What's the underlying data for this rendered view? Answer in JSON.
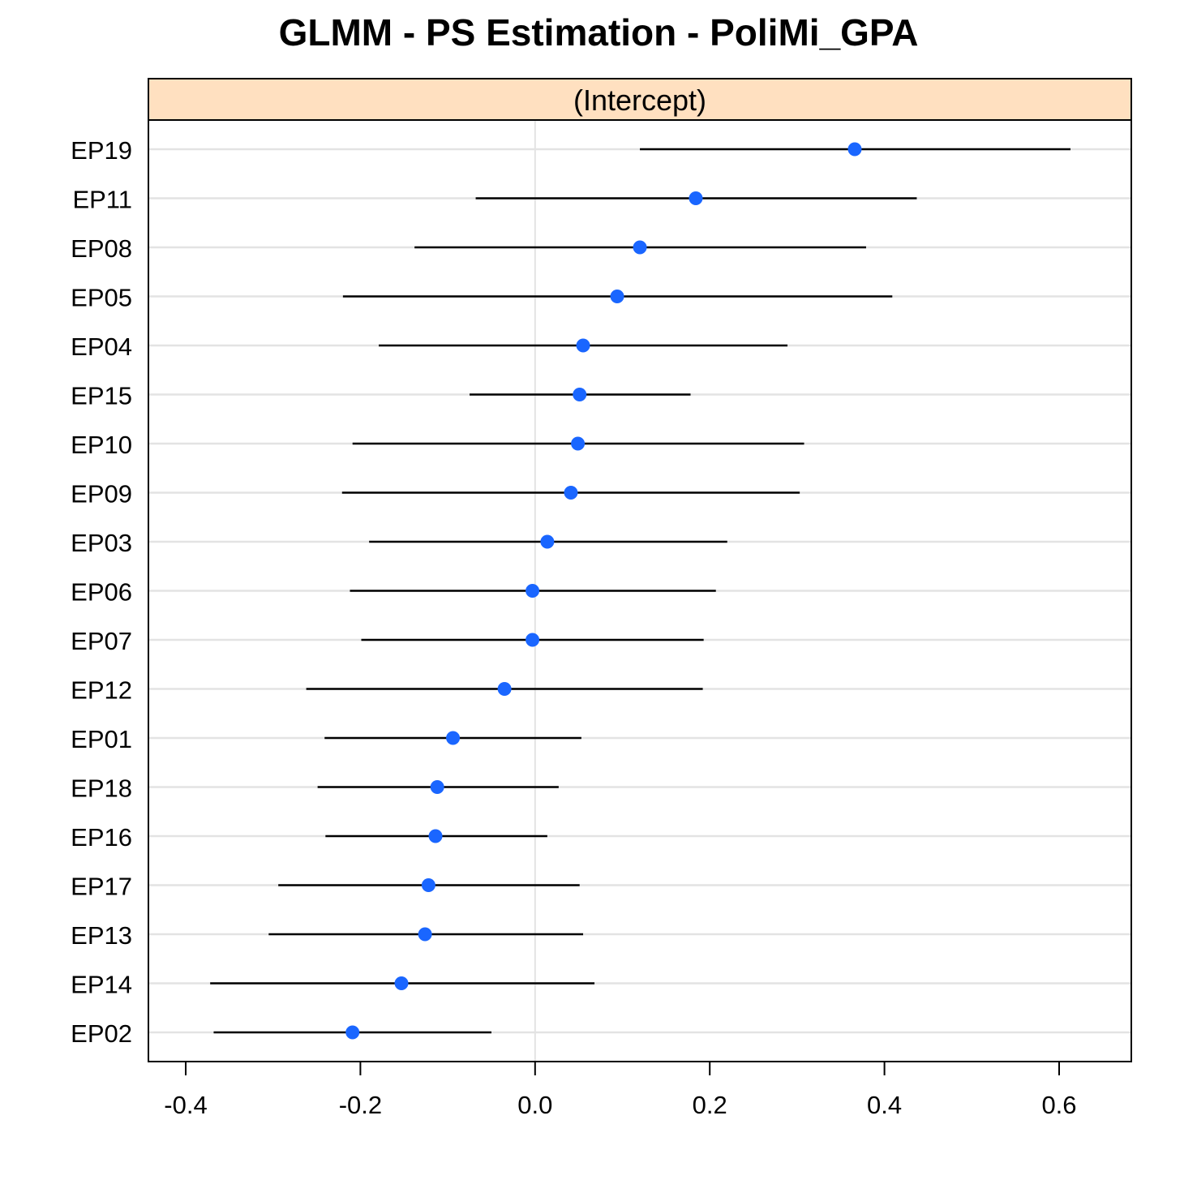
{
  "chart_data": {
    "type": "dot-interval",
    "title": "GLMM - PS Estimation - PoliMi_GPA",
    "panel_label": "(Intercept)",
    "xlabel": "",
    "ylabel": "",
    "xlim": [
      -0.42,
      0.68
    ],
    "x_ticks": [
      -0.4,
      -0.2,
      0.0,
      0.2,
      0.4,
      0.6
    ],
    "x_tick_labels": [
      "-0.4",
      "-0.2",
      "0.0",
      "0.2",
      "0.4",
      "0.6"
    ],
    "reference_line": 0.0,
    "grid": "horizontal",
    "colors": {
      "point": "#1a66ff",
      "interval": "#000000",
      "grid": "#e3e3e3",
      "strip": "#ffe0c0",
      "frame": "#000000"
    },
    "categories": [
      "EP19",
      "EP11",
      "EP08",
      "EP05",
      "EP04",
      "EP15",
      "EP10",
      "EP09",
      "EP03",
      "EP06",
      "EP07",
      "EP12",
      "EP01",
      "EP18",
      "EP16",
      "EP17",
      "EP13",
      "EP14",
      "EP02"
    ],
    "estimates": [
      0.366,
      0.184,
      0.12,
      0.094,
      0.055,
      0.051,
      0.049,
      0.041,
      0.014,
      -0.003,
      -0.003,
      -0.035,
      -0.094,
      -0.112,
      -0.114,
      -0.122,
      -0.126,
      -0.153,
      -0.209
    ],
    "lower": [
      0.12,
      -0.068,
      -0.138,
      -0.22,
      -0.179,
      -0.075,
      -0.209,
      -0.221,
      -0.19,
      -0.212,
      -0.199,
      -0.262,
      -0.241,
      -0.249,
      -0.24,
      -0.294,
      -0.305,
      -0.372,
      -0.368
    ],
    "upper": [
      0.613,
      0.437,
      0.379,
      0.409,
      0.289,
      0.178,
      0.308,
      0.303,
      0.22,
      0.207,
      0.193,
      0.192,
      0.053,
      0.027,
      0.014,
      0.051,
      0.055,
      0.068,
      -0.05
    ]
  }
}
